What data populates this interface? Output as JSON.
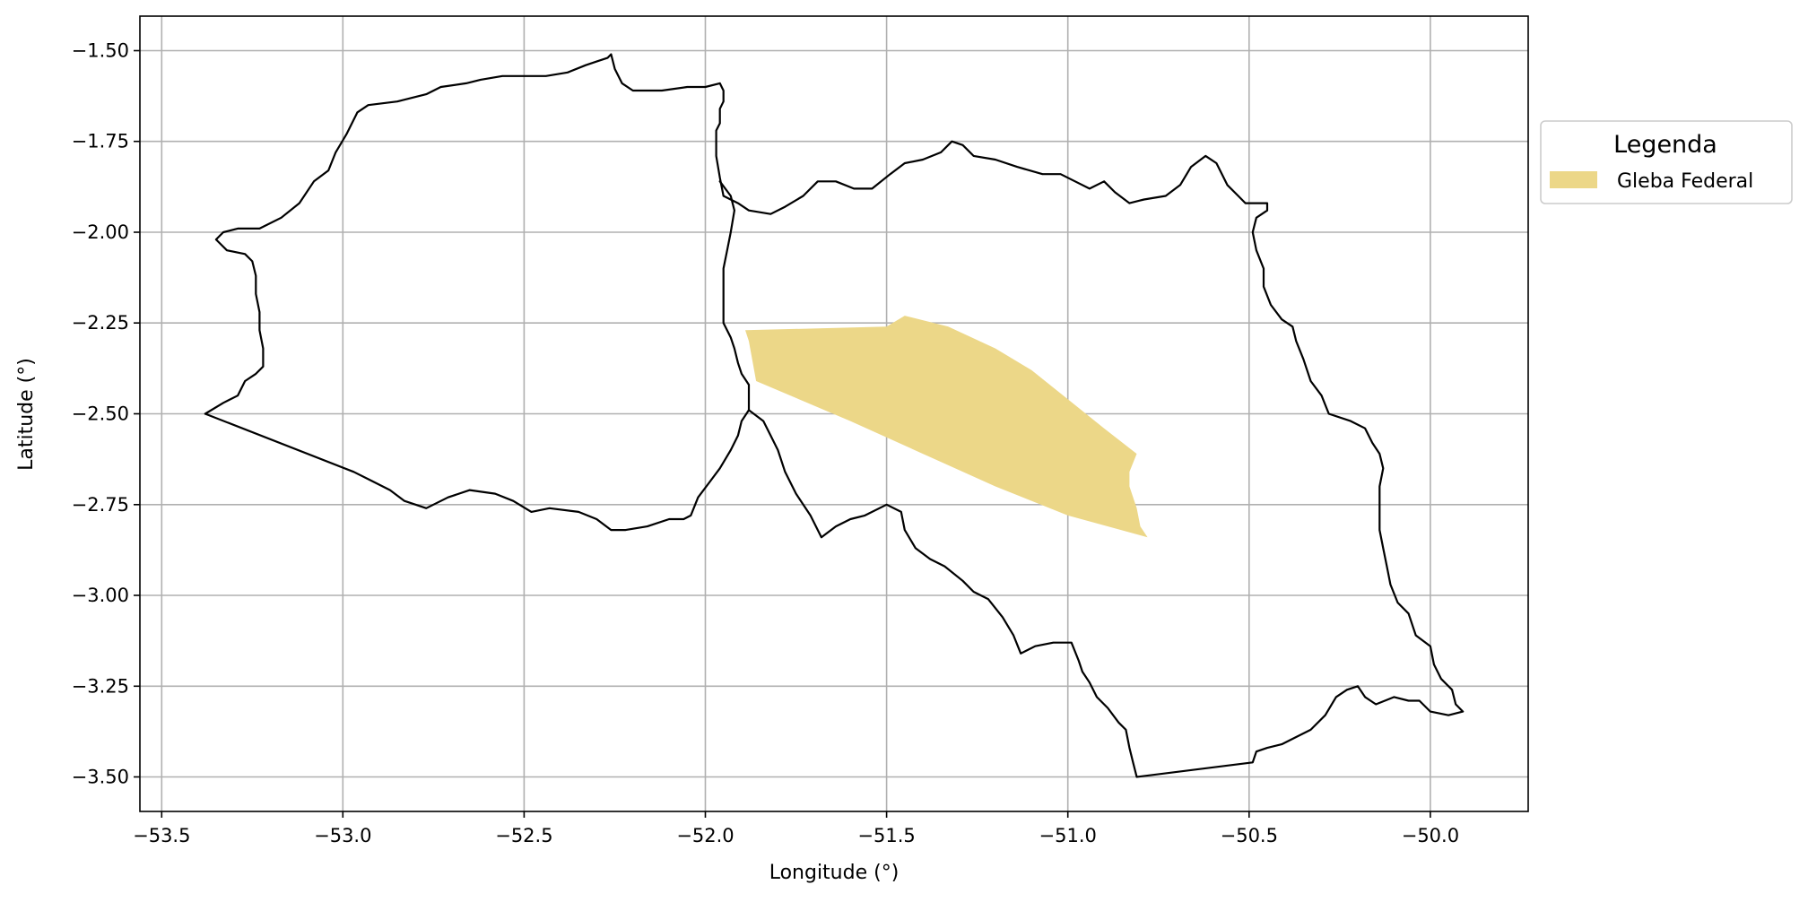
{
  "chart_data": {
    "type": "map",
    "xlabel": "Longitude (°)",
    "ylabel": "Latitude (°)",
    "xlim": [
      -53.56,
      -49.73
    ],
    "ylim": [
      -3.595,
      -1.405
    ],
    "xticks": [
      -53.5,
      -53.0,
      -52.5,
      -52.0,
      -51.5,
      -51.0,
      -50.5,
      -50.0
    ],
    "xtick_labels": [
      "−53.5",
      "−53.0",
      "−52.5",
      "−52.0",
      "−51.5",
      "−51.0",
      "−50.5",
      "−50.0"
    ],
    "yticks": [
      -1.5,
      -1.75,
      -2.0,
      -2.25,
      -2.5,
      -2.75,
      -3.0,
      -3.25,
      -3.5
    ],
    "ytick_labels": [
      "−1.50",
      "−1.75",
      "−2.00",
      "−2.25",
      "−2.50",
      "−2.75",
      "−3.00",
      "−3.25",
      "−3.50"
    ],
    "grid": true,
    "legend": {
      "title": "Legenda",
      "placement": "outside-right-top",
      "entries": [
        {
          "label": "Gleba Federal",
          "color": "#ecd788"
        }
      ]
    },
    "boundaries": [
      {
        "color": "#000000",
        "coords": [
          [
            -53.38,
            -2.5
          ],
          [
            -53.33,
            -2.47
          ],
          [
            -53.29,
            -2.45
          ],
          [
            -53.27,
            -2.41
          ],
          [
            -53.24,
            -2.39
          ],
          [
            -53.22,
            -2.37
          ],
          [
            -53.22,
            -2.32
          ],
          [
            -53.23,
            -2.27
          ],
          [
            -53.23,
            -2.22
          ],
          [
            -53.24,
            -2.17
          ],
          [
            -53.24,
            -2.12
          ],
          [
            -53.25,
            -2.08
          ],
          [
            -53.27,
            -2.06
          ],
          [
            -53.32,
            -2.05
          ],
          [
            -53.34,
            -2.03
          ],
          [
            -53.35,
            -2.02
          ],
          [
            -53.33,
            -2.0
          ],
          [
            -53.29,
            -1.99
          ],
          [
            -53.23,
            -1.99
          ],
          [
            -53.17,
            -1.96
          ],
          [
            -53.12,
            -1.92
          ],
          [
            -53.08,
            -1.86
          ],
          [
            -53.04,
            -1.83
          ],
          [
            -53.02,
            -1.78
          ],
          [
            -52.99,
            -1.73
          ],
          [
            -52.96,
            -1.67
          ],
          [
            -52.93,
            -1.65
          ],
          [
            -52.85,
            -1.64
          ],
          [
            -52.77,
            -1.62
          ],
          [
            -52.73,
            -1.6
          ],
          [
            -52.66,
            -1.59
          ],
          [
            -52.62,
            -1.58
          ],
          [
            -52.56,
            -1.57
          ],
          [
            -52.44,
            -1.57
          ],
          [
            -52.38,
            -1.56
          ],
          [
            -52.33,
            -1.54
          ],
          [
            -52.3,
            -1.53
          ],
          [
            -52.27,
            -1.52
          ],
          [
            -52.26,
            -1.51
          ],
          [
            -52.25,
            -1.55
          ],
          [
            -52.23,
            -1.59
          ],
          [
            -52.2,
            -1.61
          ],
          [
            -52.12,
            -1.61
          ],
          [
            -52.05,
            -1.6
          ],
          [
            -52.0,
            -1.6
          ],
          [
            -51.96,
            -1.59
          ],
          [
            -51.95,
            -1.61
          ],
          [
            -51.95,
            -1.64
          ],
          [
            -51.96,
            -1.66
          ],
          [
            -51.96,
            -1.7
          ],
          [
            -51.97,
            -1.72
          ],
          [
            -51.97,
            -1.79
          ],
          [
            -51.96,
            -1.85
          ],
          [
            -51.95,
            -1.9
          ],
          [
            -51.91,
            -1.92
          ],
          [
            -51.88,
            -1.94
          ],
          [
            -51.82,
            -1.95
          ],
          [
            -51.78,
            -1.93
          ],
          [
            -51.73,
            -1.9
          ],
          [
            -51.69,
            -1.86
          ],
          [
            -51.64,
            -1.86
          ],
          [
            -51.59,
            -1.88
          ],
          [
            -51.54,
            -1.88
          ],
          [
            -51.49,
            -1.84
          ],
          [
            -51.45,
            -1.81
          ],
          [
            -51.4,
            -1.8
          ],
          [
            -51.35,
            -1.78
          ],
          [
            -51.32,
            -1.75
          ],
          [
            -51.29,
            -1.76
          ],
          [
            -51.26,
            -1.79
          ],
          [
            -51.2,
            -1.8
          ],
          [
            -51.14,
            -1.82
          ],
          [
            -51.07,
            -1.84
          ],
          [
            -51.02,
            -1.84
          ],
          [
            -50.98,
            -1.86
          ],
          [
            -50.94,
            -1.88
          ],
          [
            -50.9,
            -1.86
          ],
          [
            -50.87,
            -1.89
          ],
          [
            -50.83,
            -1.92
          ],
          [
            -50.79,
            -1.91
          ],
          [
            -50.73,
            -1.9
          ],
          [
            -50.69,
            -1.87
          ],
          [
            -50.66,
            -1.82
          ],
          [
            -50.62,
            -1.79
          ],
          [
            -50.59,
            -1.81
          ],
          [
            -50.56,
            -1.87
          ],
          [
            -50.53,
            -1.9
          ],
          [
            -50.51,
            -1.92
          ],
          [
            -50.45,
            -1.92
          ],
          [
            -50.45,
            -1.94
          ],
          [
            -50.48,
            -1.96
          ],
          [
            -50.49,
            -2.0
          ],
          [
            -50.48,
            -2.05
          ],
          [
            -50.46,
            -2.1
          ],
          [
            -50.46,
            -2.15
          ],
          [
            -50.44,
            -2.2
          ],
          [
            -50.41,
            -2.24
          ],
          [
            -50.38,
            -2.26
          ],
          [
            -50.37,
            -2.3
          ],
          [
            -50.35,
            -2.35
          ],
          [
            -50.33,
            -2.41
          ],
          [
            -50.3,
            -2.45
          ],
          [
            -50.28,
            -2.5
          ],
          [
            -50.22,
            -2.52
          ],
          [
            -50.18,
            -2.54
          ],
          [
            -50.16,
            -2.58
          ],
          [
            -50.14,
            -2.61
          ],
          [
            -50.13,
            -2.65
          ],
          [
            -50.14,
            -2.7
          ],
          [
            -50.14,
            -2.78
          ],
          [
            -50.14,
            -2.82
          ],
          [
            -50.13,
            -2.87
          ],
          [
            -50.12,
            -2.92
          ],
          [
            -50.11,
            -2.97
          ],
          [
            -50.09,
            -3.02
          ],
          [
            -50.06,
            -3.05
          ],
          [
            -50.04,
            -3.11
          ],
          [
            -50.0,
            -3.14
          ],
          [
            -49.99,
            -3.19
          ],
          [
            -49.97,
            -3.23
          ],
          [
            -49.94,
            -3.26
          ],
          [
            -49.93,
            -3.3
          ],
          [
            -49.91,
            -3.32
          ],
          [
            -49.95,
            -3.33
          ],
          [
            -50.0,
            -3.32
          ],
          [
            -50.03,
            -3.29
          ],
          [
            -50.06,
            -3.29
          ],
          [
            -50.1,
            -3.28
          ],
          [
            -50.15,
            -3.3
          ],
          [
            -50.18,
            -3.28
          ],
          [
            -50.2,
            -3.25
          ],
          [
            -50.23,
            -3.26
          ],
          [
            -50.26,
            -3.28
          ],
          [
            -50.29,
            -3.33
          ],
          [
            -50.33,
            -3.37
          ],
          [
            -50.37,
            -3.39
          ],
          [
            -50.41,
            -3.41
          ],
          [
            -50.45,
            -3.42
          ],
          [
            -50.48,
            -3.43
          ],
          [
            -50.49,
            -3.46
          ],
          [
            -50.81,
            -3.5
          ],
          [
            -50.82,
            -3.46
          ],
          [
            -50.83,
            -3.42
          ],
          [
            -50.84,
            -3.37
          ],
          [
            -50.86,
            -3.35
          ],
          [
            -50.89,
            -3.31
          ],
          [
            -50.92,
            -3.28
          ],
          [
            -50.94,
            -3.24
          ],
          [
            -50.96,
            -3.21
          ],
          [
            -50.97,
            -3.18
          ],
          [
            -50.99,
            -3.13
          ],
          [
            -51.04,
            -3.13
          ],
          [
            -51.09,
            -3.14
          ],
          [
            -51.13,
            -3.16
          ],
          [
            -51.15,
            -3.11
          ],
          [
            -51.18,
            -3.06
          ],
          [
            -51.22,
            -3.01
          ],
          [
            -51.26,
            -2.99
          ],
          [
            -51.29,
            -2.96
          ],
          [
            -51.34,
            -2.92
          ],
          [
            -51.38,
            -2.9
          ],
          [
            -51.42,
            -2.87
          ],
          [
            -51.45,
            -2.82
          ],
          [
            -51.46,
            -2.77
          ],
          [
            -51.5,
            -2.75
          ],
          [
            -51.56,
            -2.78
          ],
          [
            -51.6,
            -2.79
          ],
          [
            -51.64,
            -2.81
          ],
          [
            -51.68,
            -2.84
          ],
          [
            -51.71,
            -2.78
          ],
          [
            -51.75,
            -2.72
          ],
          [
            -51.78,
            -2.66
          ],
          [
            -51.8,
            -2.6
          ],
          [
            -51.82,
            -2.56
          ],
          [
            -51.84,
            -2.52
          ],
          [
            -51.88,
            -2.49
          ],
          [
            -51.9,
            -2.52
          ],
          [
            -51.91,
            -2.56
          ],
          [
            -51.93,
            -2.6
          ],
          [
            -51.96,
            -2.65
          ],
          [
            -51.99,
            -2.69
          ],
          [
            -52.02,
            -2.73
          ],
          [
            -52.04,
            -2.78
          ],
          [
            -52.06,
            -2.79
          ],
          [
            -52.1,
            -2.79
          ],
          [
            -52.16,
            -2.81
          ],
          [
            -52.22,
            -2.82
          ],
          [
            -52.26,
            -2.82
          ],
          [
            -52.3,
            -2.79
          ],
          [
            -52.35,
            -2.77
          ],
          [
            -52.43,
            -2.76
          ],
          [
            -52.48,
            -2.77
          ],
          [
            -52.53,
            -2.74
          ],
          [
            -52.58,
            -2.72
          ],
          [
            -52.65,
            -2.71
          ],
          [
            -52.71,
            -2.73
          ],
          [
            -52.77,
            -2.76
          ],
          [
            -52.83,
            -2.74
          ],
          [
            -52.87,
            -2.71
          ],
          [
            -52.93,
            -2.68
          ],
          [
            -52.97,
            -2.66
          ],
          [
            -53.38,
            -2.5
          ]
        ]
      },
      {
        "color": "#000000",
        "coords": [
          [
            -51.96,
            -1.86
          ],
          [
            -51.93,
            -1.9
          ],
          [
            -51.92,
            -1.94
          ],
          [
            -51.93,
            -2.0
          ],
          [
            -51.94,
            -2.05
          ],
          [
            -51.95,
            -2.1
          ],
          [
            -51.95,
            -2.25
          ],
          [
            -51.93,
            -2.29
          ],
          [
            -51.92,
            -2.32
          ],
          [
            -51.91,
            -2.36
          ],
          [
            -51.9,
            -2.39
          ],
          [
            -51.88,
            -2.42
          ],
          [
            -51.88,
            -2.49
          ]
        ]
      }
    ],
    "regions": [
      {
        "label": "Gleba Federal",
        "color": "#ecd788",
        "coords": [
          [
            -51.89,
            -2.27
          ],
          [
            -51.5,
            -2.26
          ],
          [
            -51.45,
            -2.23
          ],
          [
            -51.33,
            -2.26
          ],
          [
            -51.2,
            -2.32
          ],
          [
            -51.1,
            -2.38
          ],
          [
            -51.0,
            -2.46
          ],
          [
            -50.9,
            -2.54
          ],
          [
            -50.81,
            -2.61
          ],
          [
            -50.83,
            -2.66
          ],
          [
            -50.83,
            -2.7
          ],
          [
            -50.81,
            -2.76
          ],
          [
            -50.8,
            -2.81
          ],
          [
            -50.78,
            -2.84
          ],
          [
            -51.0,
            -2.78
          ],
          [
            -51.2,
            -2.7
          ],
          [
            -51.4,
            -2.61
          ],
          [
            -51.6,
            -2.52
          ],
          [
            -51.86,
            -2.41
          ],
          [
            -51.88,
            -2.3
          ]
        ]
      }
    ]
  }
}
